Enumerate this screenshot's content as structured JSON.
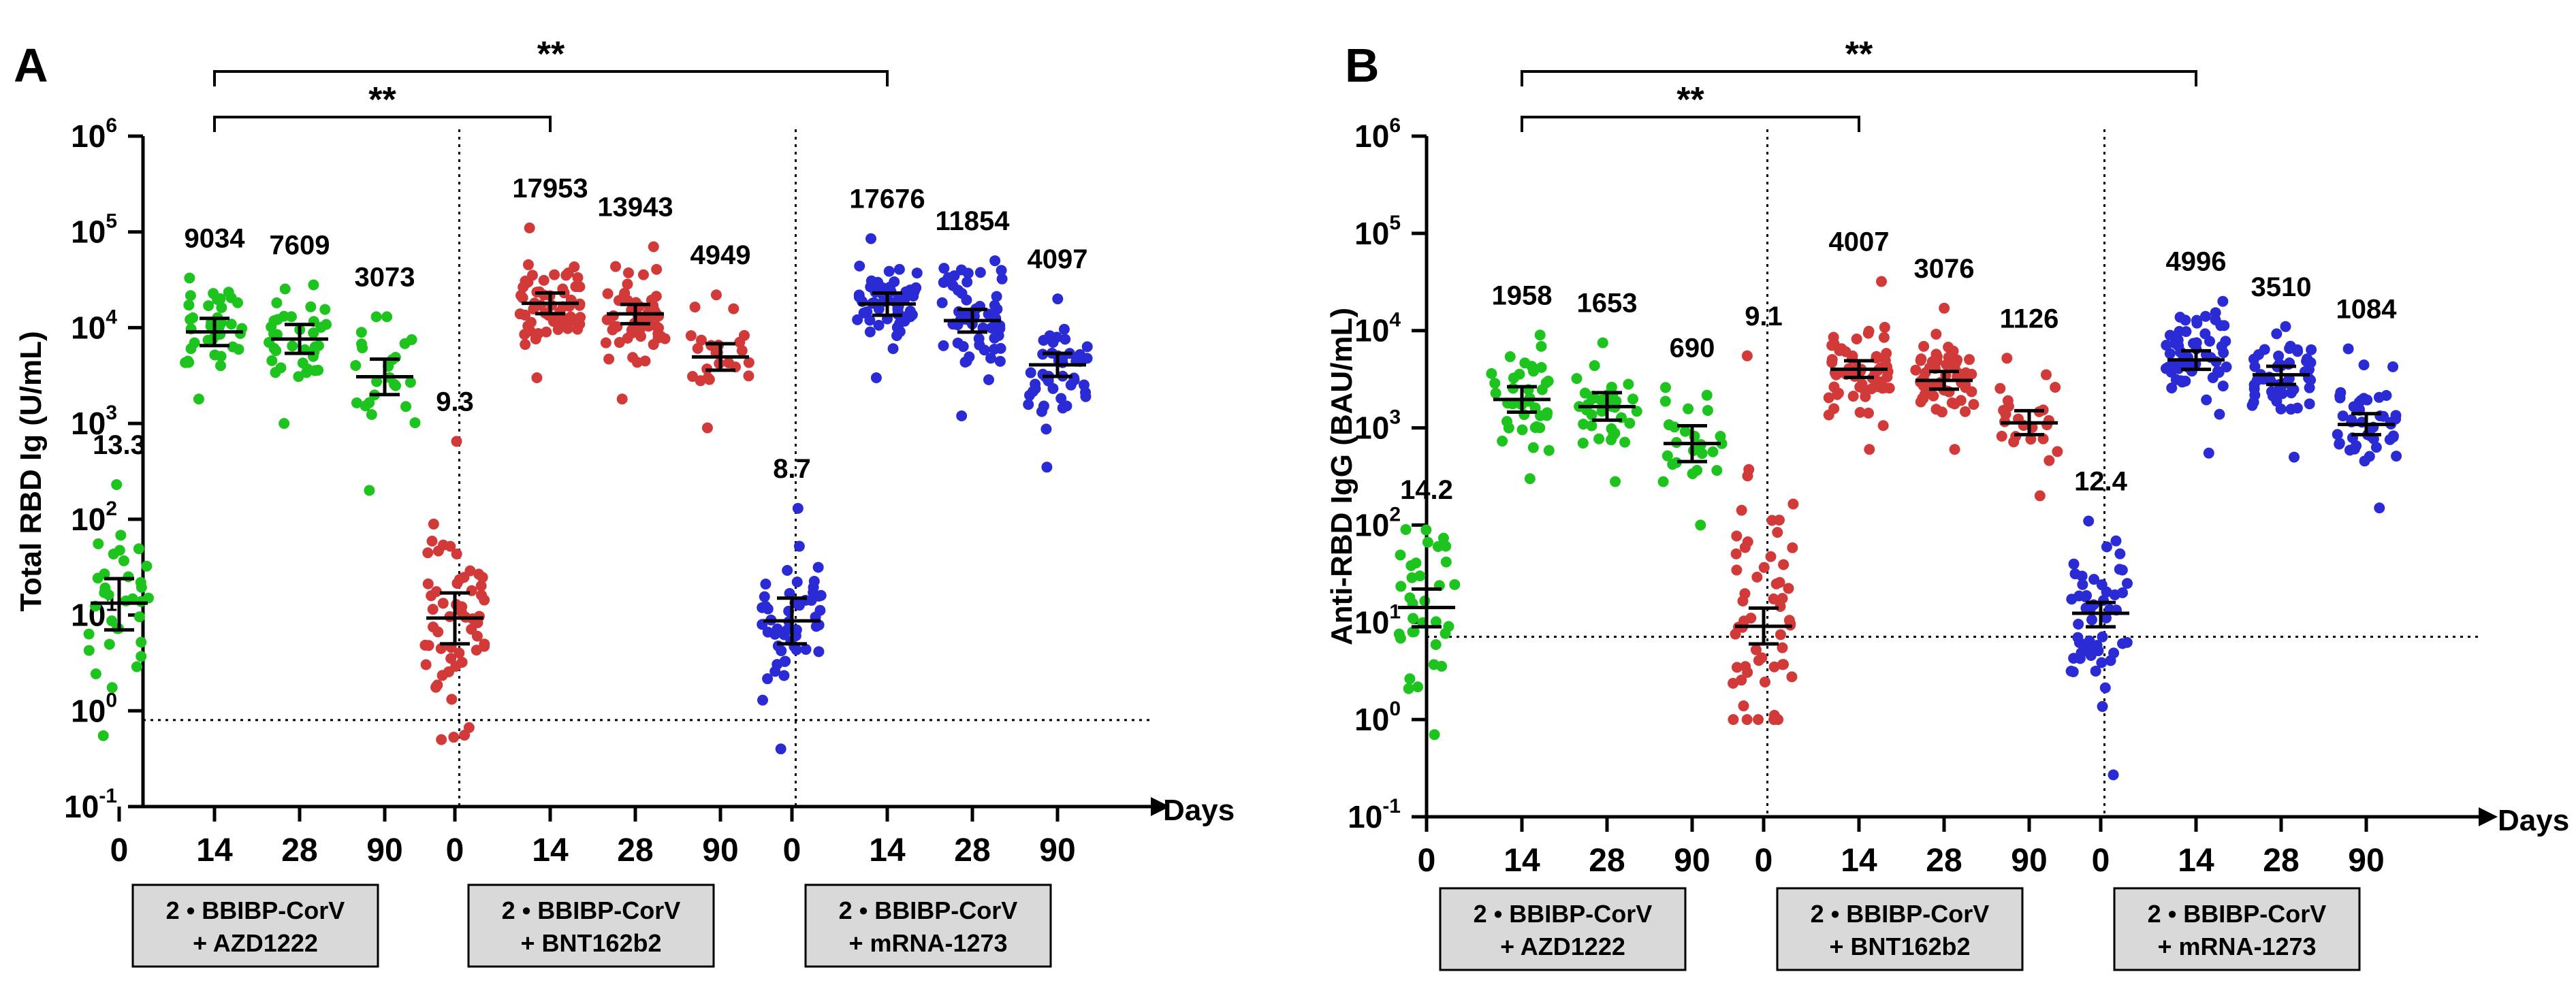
{
  "colors": {
    "azd": "#1ec41e",
    "bnt": "#d23a3a",
    "mrna": "#2b2bd6",
    "axis": "#000000",
    "group_box": "#d9d9d9"
  },
  "x_axis_unit": "Days",
  "day_labels": [
    "0",
    "14",
    "28",
    "90"
  ],
  "chart_data": [
    {
      "type": "scatter",
      "panel_label": "A",
      "ylabel": "Total RBD Ig (U/mL)",
      "xlabel": "Days",
      "yscale": "log",
      "ylim": [
        0.1,
        1000000
      ],
      "ytick_exponents": [
        "6",
        "5",
        "4",
        "3",
        "2",
        "1",
        "0",
        "-1"
      ],
      "threshold": 0.8,
      "groups": [
        {
          "label_line1": "2 • BBIBP-CorV",
          "label_line2": "+ AZD1222",
          "color_key": "azd",
          "days": [
            {
              "day": "0",
              "gmt": 13.3,
              "gmt_label": "13.3",
              "ci": [
                7,
                24
              ],
              "range": [
                0.55,
                230
              ],
              "n": 34
            },
            {
              "day": "14",
              "gmt": 9034,
              "gmt_label": "9034",
              "ci": [
                6500,
                12500
              ],
              "range": [
                1800,
                33000
              ],
              "n": 38
            },
            {
              "day": "28",
              "gmt": 7609,
              "gmt_label": "7609",
              "ci": [
                5400,
                10800
              ],
              "range": [
                1000,
                28000
              ],
              "n": 36
            },
            {
              "day": "90",
              "gmt": 3073,
              "gmt_label": "3073",
              "ci": [
                2000,
                4700
              ],
              "range": [
                200,
                13000
              ],
              "n": 24
            }
          ]
        },
        {
          "label_line1": "2 • BBIBP-CorV",
          "label_line2": "+ BNT162b2",
          "color_key": "bnt",
          "days": [
            {
              "day": "0",
              "gmt": 9.3,
              "gmt_label": "9.3",
              "ci": [
                5,
                17
              ],
              "range": [
                0.5,
                650
              ],
              "n": 56
            },
            {
              "day": "14",
              "gmt": 17953,
              "gmt_label": "17953",
              "ci": [
                14000,
                23000
              ],
              "range": [
                3000,
                110000
              ],
              "n": 60
            },
            {
              "day": "28",
              "gmt": 13943,
              "gmt_label": "13943",
              "ci": [
                11000,
                17500
              ],
              "range": [
                1800,
                70000
              ],
              "n": 58
            },
            {
              "day": "90",
              "gmt": 4949,
              "gmt_label": "4949",
              "ci": [
                3600,
                6800
              ],
              "range": [
                900,
                22000
              ],
              "n": 24
            }
          ]
        },
        {
          "label_line1": "2 • BBIBP-CorV",
          "label_line2": "+ mRNA-1273",
          "color_key": "mrna",
          "days": [
            {
              "day": "0",
              "gmt": 8.7,
              "gmt_label": "8.7",
              "ci": [
                5,
                15
              ],
              "range": [
                0.4,
                130
              ],
              "n": 52
            },
            {
              "day": "14",
              "gmt": 17676,
              "gmt_label": "17676",
              "ci": [
                13500,
                23000
              ],
              "range": [
                3000,
                85000
              ],
              "n": 56
            },
            {
              "day": "28",
              "gmt": 11854,
              "gmt_label": "11854",
              "ci": [
                9000,
                15500
              ],
              "range": [
                1200,
                50000
              ],
              "n": 54
            },
            {
              "day": "90",
              "gmt": 4097,
              "gmt_label": "4097",
              "ci": [
                3100,
                5400
              ],
              "range": [
                350,
                20000
              ],
              "n": 44
            }
          ]
        }
      ],
      "significance": [
        {
          "label": "**",
          "from": "AZD1222 day 14",
          "to": "BNT162b2 day 14"
        },
        {
          "label": "**",
          "from": "AZD1222 day 14",
          "to": "mRNA-1273 day 14"
        }
      ]
    },
    {
      "type": "scatter",
      "panel_label": "B",
      "ylabel": "Anti-RBD IgG (BAU/mL)",
      "xlabel": "Days",
      "yscale": "log",
      "ylim": [
        0.1,
        1000000
      ],
      "ytick_exponents": [
        "6",
        "5",
        "4",
        "3",
        "2",
        "1",
        "0",
        "-1"
      ],
      "threshold": 7.1,
      "groups": [
        {
          "label_line1": "2 • BBIBP-CorV",
          "label_line2": "+ AZD1222",
          "color_key": "azd",
          "days": [
            {
              "day": "0",
              "gmt": 14.2,
              "gmt_label": "14.2",
              "ci": [
                9,
                22
              ],
              "range": [
                0.7,
                90
              ],
              "n": 34
            },
            {
              "day": "14",
              "gmt": 1958,
              "gmt_label": "1958",
              "ci": [
                1450,
                2650
              ],
              "range": [
                300,
                9000
              ],
              "n": 38
            },
            {
              "day": "28",
              "gmt": 1653,
              "gmt_label": "1653",
              "ci": [
                1200,
                2300
              ],
              "range": [
                280,
                7500
              ],
              "n": 36
            },
            {
              "day": "90",
              "gmt": 690,
              "gmt_label": "690",
              "ci": [
                450,
                1050
              ],
              "range": [
                100,
                2600
              ],
              "n": 24
            }
          ]
        },
        {
          "label_line1": "2 • BBIBP-CorV",
          "label_line2": "+ BNT162b2",
          "color_key": "bnt",
          "days": [
            {
              "day": "0",
              "gmt": 9.1,
              "gmt_label": "9.1",
              "ci": [
                6,
                14
              ],
              "range": [
                1,
                5500
              ],
              "n": 56
            },
            {
              "day": "14",
              "gmt": 4007,
              "gmt_label": "4007",
              "ci": [
                3300,
                4900
              ],
              "range": [
                600,
                32000
              ],
              "n": 60
            },
            {
              "day": "28",
              "gmt": 3076,
              "gmt_label": "3076",
              "ci": [
                2500,
                3800
              ],
              "range": [
                600,
                17000
              ],
              "n": 58
            },
            {
              "day": "90",
              "gmt": 1126,
              "gmt_label": "1126",
              "ci": [
                850,
                1500
              ],
              "range": [
                200,
                5200
              ],
              "n": 24
            }
          ]
        },
        {
          "label_line1": "2 • BBIBP-CorV",
          "label_line2": "+ mRNA-1273",
          "color_key": "mrna",
          "days": [
            {
              "day": "0",
              "gmt": 12.4,
              "gmt_label": "12.4",
              "ci": [
                9,
                16
              ],
              "range": [
                0.27,
                110
              ],
              "n": 52
            },
            {
              "day": "14",
              "gmt": 4996,
              "gmt_label": "4996",
              "ci": [
                4000,
                6200
              ],
              "range": [
                550,
                20000
              ],
              "n": 56
            },
            {
              "day": "28",
              "gmt": 3510,
              "gmt_label": "3510",
              "ci": [
                2800,
                4300
              ],
              "range": [
                500,
                11000
              ],
              "n": 54
            },
            {
              "day": "90",
              "gmt": 1084,
              "gmt_label": "1084",
              "ci": [
                850,
                1400
              ],
              "range": [
                150,
                6500
              ],
              "n": 44
            }
          ]
        }
      ],
      "significance": [
        {
          "label": "**",
          "from": "AZD1222 day 14",
          "to": "BNT162b2 day 14"
        },
        {
          "label": "**",
          "from": "AZD1222 day 14",
          "to": "mRNA-1273 day 14"
        }
      ]
    }
  ]
}
